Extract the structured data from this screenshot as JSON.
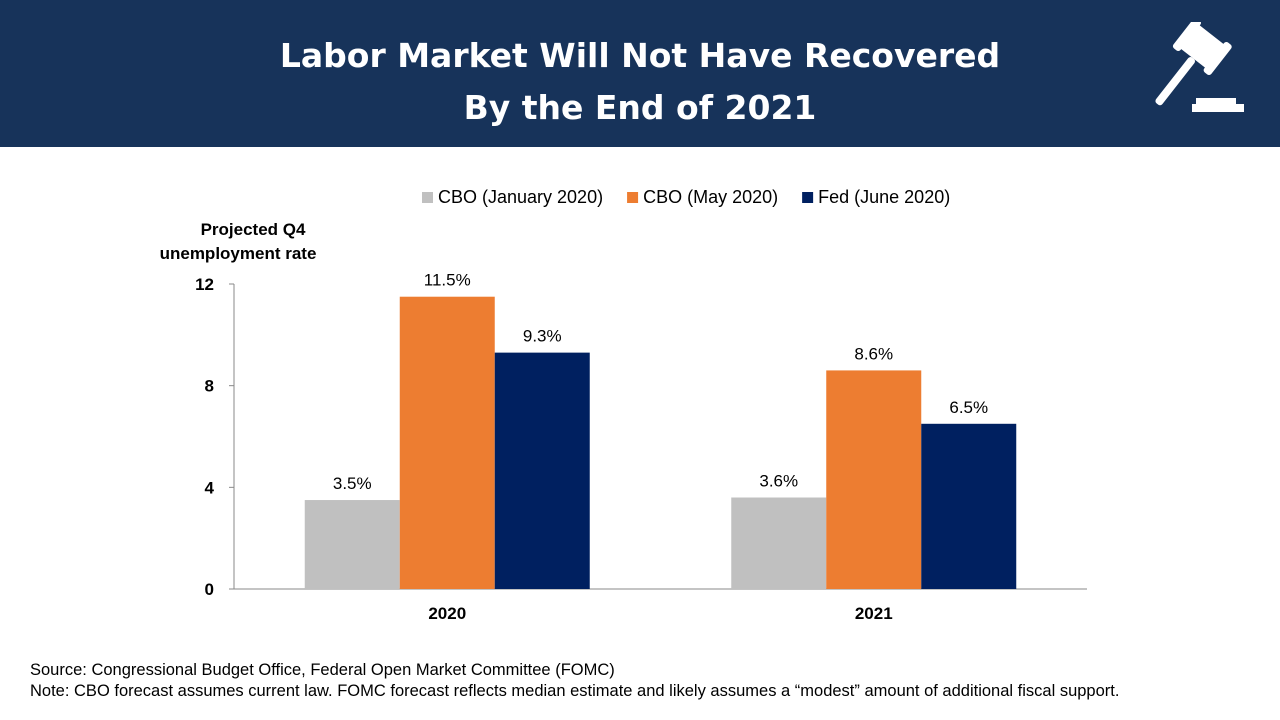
{
  "header": {
    "title_line1": "Labor Market Will Not Have Recovered",
    "title_line2": "By the End of 2021",
    "icon": "gavel-icon",
    "background": "#17335a"
  },
  "chart_data": {
    "type": "bar",
    "ylabel": "Projected Q4 unemployment rate",
    "ylabel_lines": [
      "Projected Q4",
      "unemployment rate"
    ],
    "ylim": [
      0,
      12
    ],
    "yticks": [
      "0",
      "4",
      "8",
      "12"
    ],
    "ytick_values": [
      0,
      4,
      8,
      12
    ],
    "categories": [
      "2020",
      "2021"
    ],
    "legend_position": "top",
    "grid": false,
    "series": [
      {
        "name": "CBO (January 2020)",
        "values": [
          3.5,
          3.6
        ],
        "labels": [
          "3.5%",
          "3.6%"
        ],
        "color": "#c0c0c0"
      },
      {
        "name": "CBO (May 2020)",
        "values": [
          11.5,
          8.6
        ],
        "labels": [
          "11.5%",
          "8.6%"
        ],
        "color": "#ed7d31"
      },
      {
        "name": "Fed (June 2020)",
        "values": [
          9.3,
          6.5
        ],
        "labels": [
          "9.3%",
          "6.5%"
        ],
        "color": "#002060"
      }
    ]
  },
  "footer": {
    "source": "Source: Congressional Budget Office, Federal Open Market Committee (FOMC)",
    "note": "Note: CBO forecast assumes current law. FOMC forecast reflects median estimate and likely assumes a “modest” amount of additional fiscal support."
  }
}
